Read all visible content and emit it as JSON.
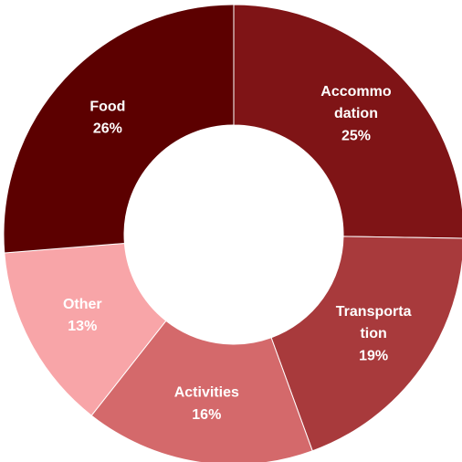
{
  "chart_data": {
    "type": "donut",
    "categories": [
      "Accommodation",
      "Transportation",
      "Activities",
      "Other",
      "Food"
    ],
    "values": [
      25,
      19,
      16,
      13,
      26
    ],
    "value_labels": [
      "25%",
      "19%",
      "16%",
      "13%",
      "26%"
    ],
    "colors": [
      "#7f1416",
      "#a83a3c",
      "#d4696b",
      "#f8a5a8",
      "#5c0000"
    ]
  }
}
